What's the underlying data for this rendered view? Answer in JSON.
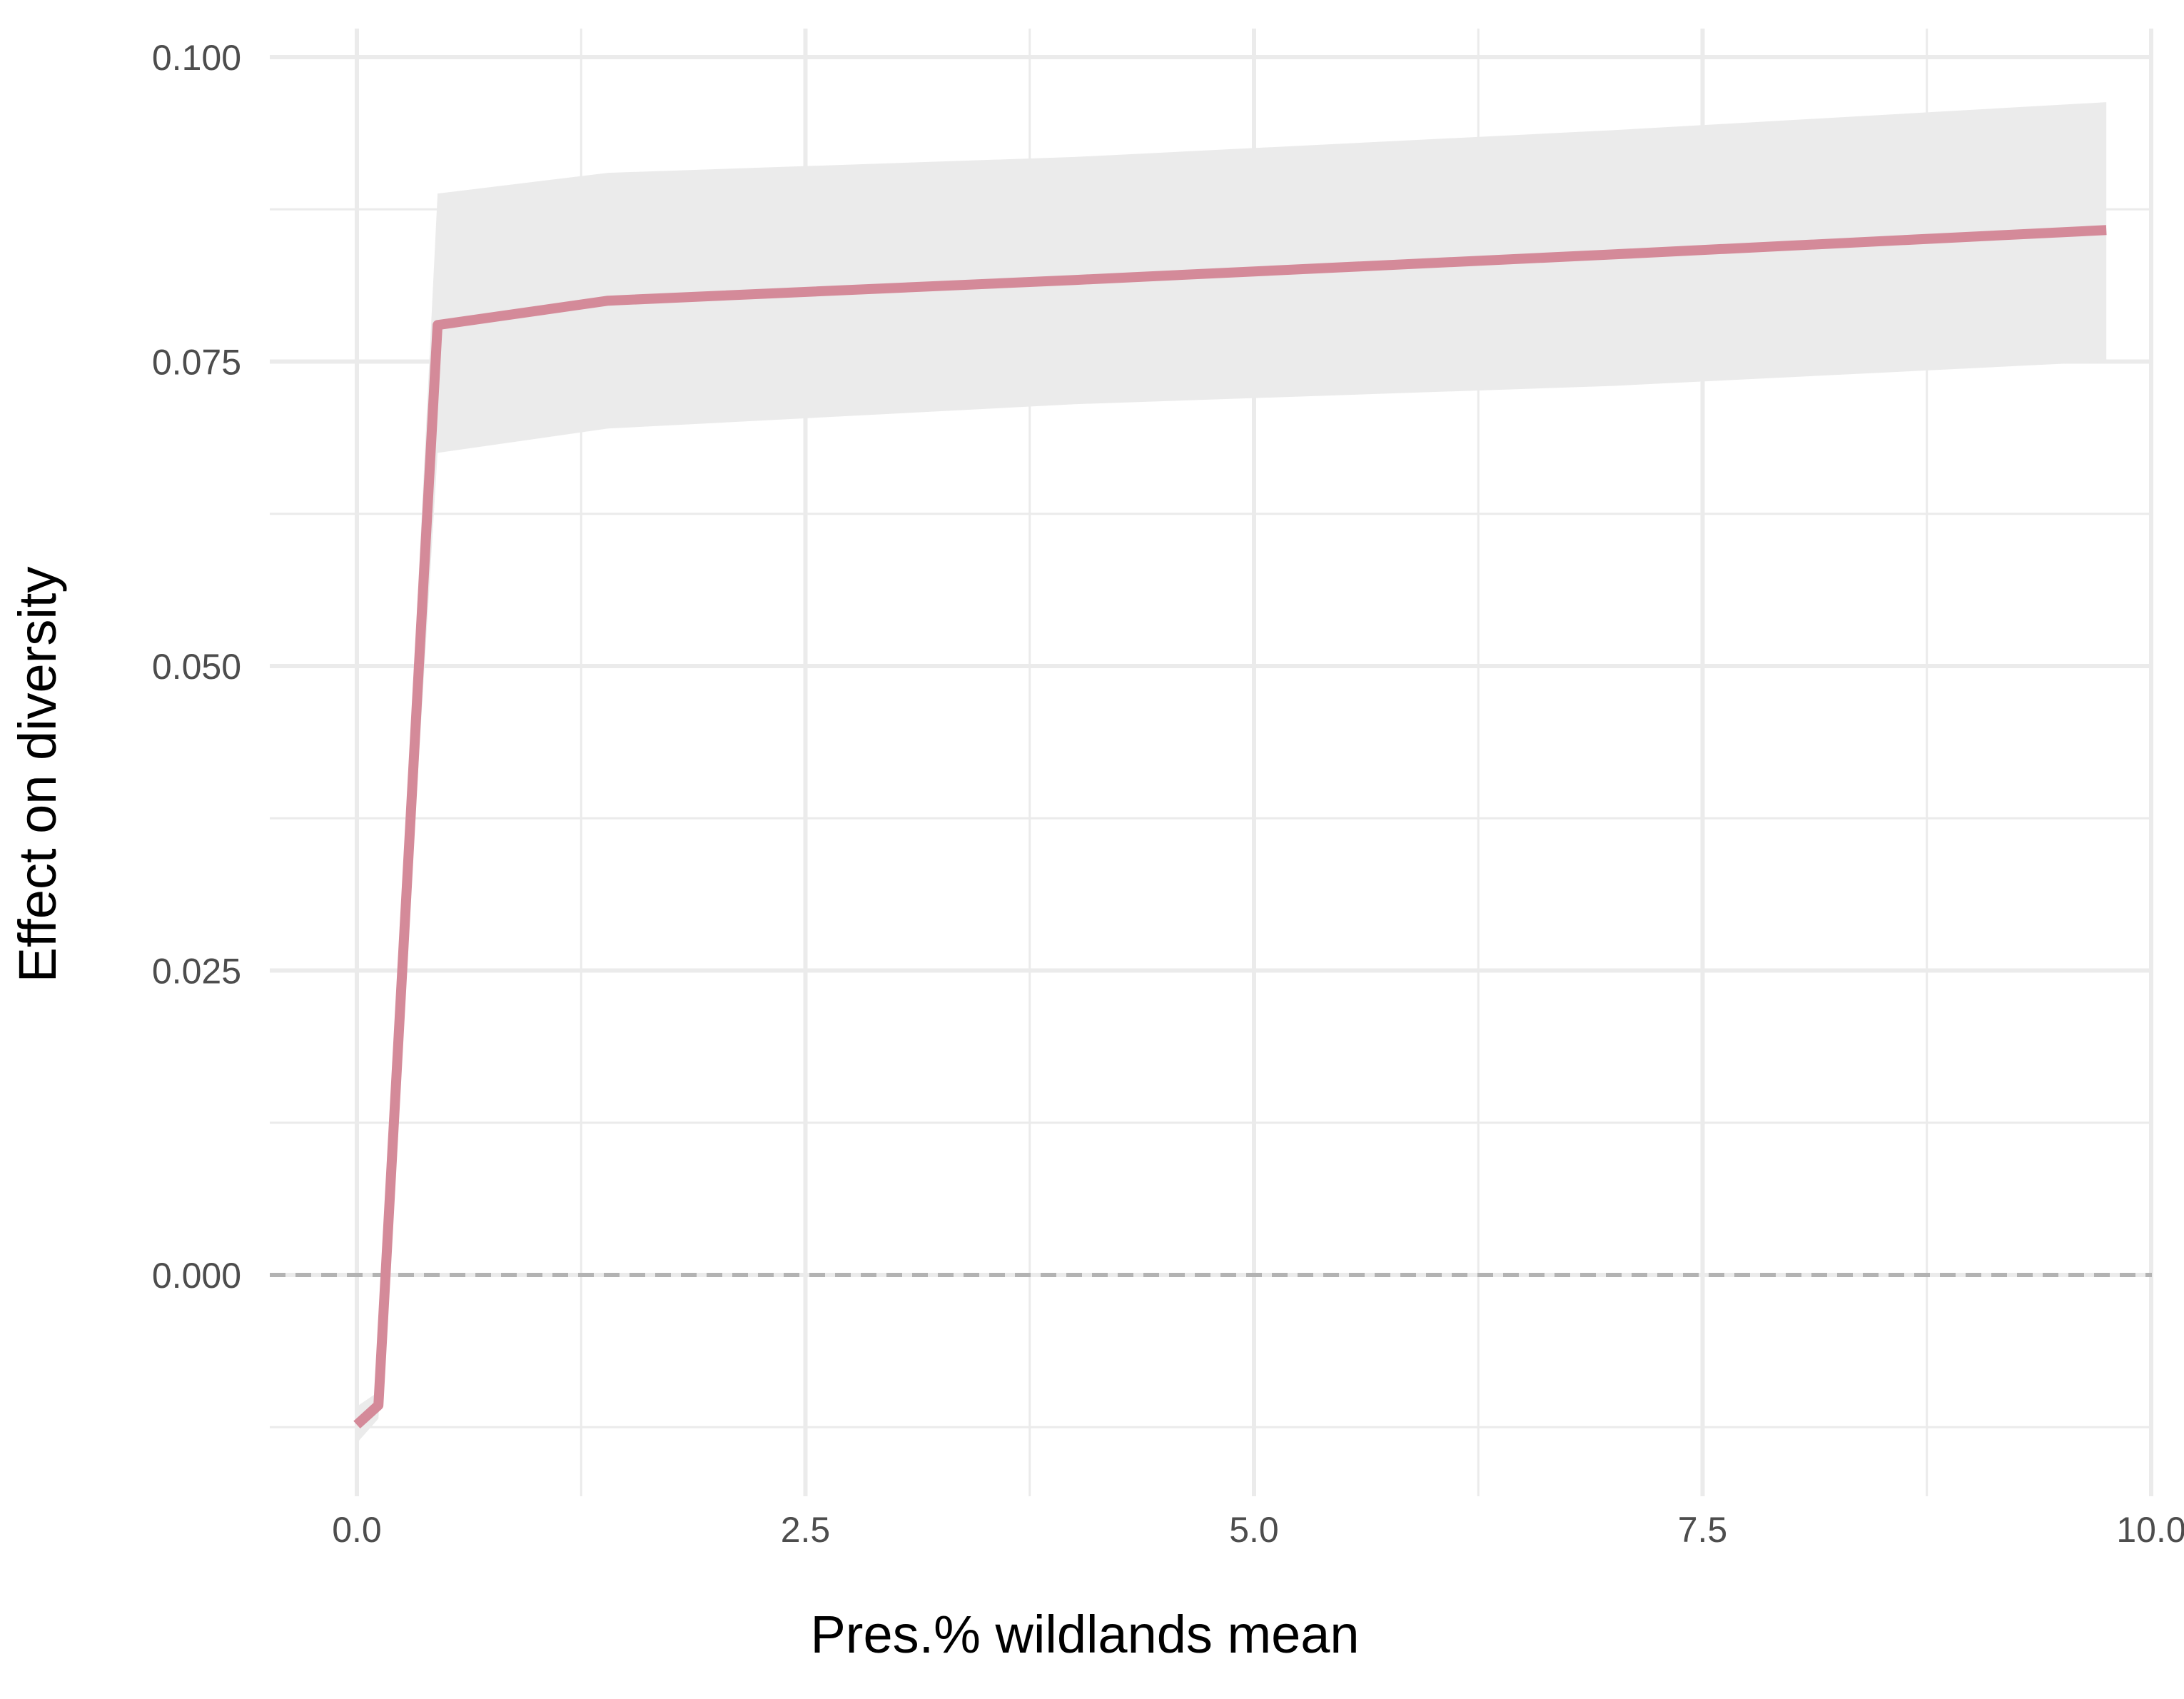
{
  "chart_data": {
    "type": "line",
    "title": "",
    "xlabel": "Pres.% wildlands mean",
    "ylabel": "Effect on diversity",
    "xlim": [
      -0.5,
      10.25
    ],
    "ylim": [
      -0.0107,
      0.1
    ],
    "x_ticks": [
      0.0,
      2.5,
      5.0,
      7.5,
      10.0
    ],
    "x_tick_labels": [
      "0.0",
      "2.5",
      "5.0",
      "7.5",
      "10.0"
    ],
    "y_ticks": [
      0.0,
      0.025,
      0.05,
      0.075,
      0.1
    ],
    "y_tick_labels": [
      "0.000",
      "0.025",
      "0.050",
      "0.075",
      "0.100"
    ],
    "grid": true,
    "legend": "none",
    "reference_line": {
      "y": 0.0,
      "style": "dashed",
      "color": "#b3b3b3"
    },
    "series": [
      {
        "x": [
          0.0,
          0.12,
          0.45,
          1.4,
          4.0,
          7.0,
          9.75
        ],
        "y": [
          -0.0123,
          -0.0107,
          0.078,
          0.08,
          0.0817,
          0.0838,
          0.0858
        ],
        "lower": [
          -0.0138,
          -0.0118,
          0.0675,
          0.0695,
          0.0715,
          0.073,
          0.075
        ],
        "upper": [
          -0.0108,
          -0.0096,
          0.0888,
          0.0905,
          0.0918,
          0.094,
          0.0963
        ],
        "color": "#d48a99",
        "band_color": "#ebebeb"
      }
    ]
  }
}
